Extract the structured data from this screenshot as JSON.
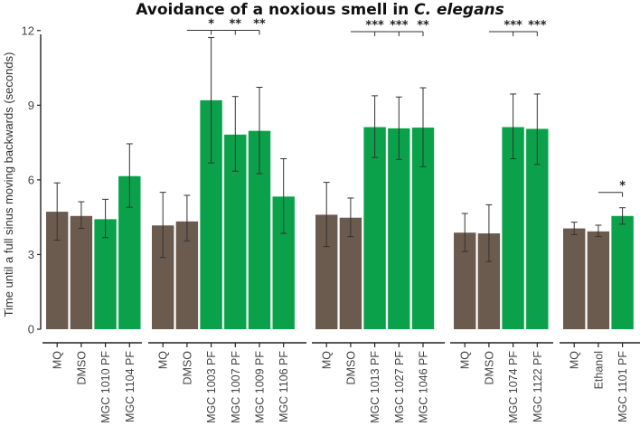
{
  "chart_data": {
    "type": "bar",
    "title_main": "Avoidance of a noxious smell in ",
    "title_italic": "C. elegans",
    "ylabel": "Time until a full sinus moving backwards (seconds)",
    "ylim": [
      0,
      12.5
    ],
    "yticks": [
      "0",
      "3",
      "6",
      "9",
      "12"
    ],
    "colors": {
      "control": "#6b5a4e",
      "treatment": "#0aa14a"
    },
    "groups": [
      {
        "name": "group-1",
        "bars": [
          {
            "label": "MQ",
            "value": 4.72,
            "lo": 3.58,
            "hi": 5.88,
            "kind": "control"
          },
          {
            "label": "DMSO",
            "value": 4.55,
            "lo": 4.05,
            "hi": 5.12,
            "kind": "control"
          },
          {
            "label": "MGC 1010 PF",
            "value": 4.42,
            "lo": 3.68,
            "hi": 5.22,
            "kind": "treatment"
          },
          {
            "label": "MGC 1104 PF",
            "value": 6.15,
            "lo": 4.9,
            "hi": 7.45,
            "kind": "treatment"
          }
        ],
        "sig": []
      },
      {
        "name": "group-2",
        "bars": [
          {
            "label": "MQ",
            "value": 4.17,
            "lo": 2.88,
            "hi": 5.5,
            "kind": "control"
          },
          {
            "label": "DMSO",
            "value": 4.33,
            "lo": 3.55,
            "hi": 5.38,
            "kind": "control"
          },
          {
            "label": "MGC 1003 PF",
            "value": 9.2,
            "lo": 6.68,
            "hi": 11.72,
            "kind": "treatment"
          },
          {
            "label": "MGC 1007 PF",
            "value": 7.82,
            "lo": 6.35,
            "hi": 9.35,
            "kind": "treatment"
          },
          {
            "label": "MGC 1009 PF",
            "value": 7.97,
            "lo": 6.25,
            "hi": 9.72,
            "kind": "treatment"
          },
          {
            "label": "MGC 1106 PF",
            "value": 5.33,
            "lo": 3.85,
            "hi": 6.85,
            "kind": "treatment"
          }
        ],
        "sig": [
          {
            "ref": 1,
            "marks": [
              {
                "bar": 2,
                "stars": "*"
              },
              {
                "bar": 3,
                "stars": "**"
              },
              {
                "bar": 4,
                "stars": "**"
              }
            ]
          }
        ]
      },
      {
        "name": "group-3",
        "bars": [
          {
            "label": "MQ",
            "value": 4.6,
            "lo": 3.32,
            "hi": 5.9,
            "kind": "control"
          },
          {
            "label": "DMSO",
            "value": 4.48,
            "lo": 3.72,
            "hi": 5.27,
            "kind": "control"
          },
          {
            "label": "MGC 1013 PF",
            "value": 8.12,
            "lo": 6.9,
            "hi": 9.38,
            "kind": "treatment"
          },
          {
            "label": "MGC 1027 PF",
            "value": 8.07,
            "lo": 6.82,
            "hi": 9.33,
            "kind": "treatment"
          },
          {
            "label": "MGC 1046 PF",
            "value": 8.1,
            "lo": 6.53,
            "hi": 9.7,
            "kind": "treatment"
          }
        ],
        "sig": [
          {
            "ref": 1,
            "marks": [
              {
                "bar": 2,
                "stars": "***"
              },
              {
                "bar": 3,
                "stars": "***"
              },
              {
                "bar": 4,
                "stars": "**"
              }
            ]
          }
        ]
      },
      {
        "name": "group-4",
        "bars": [
          {
            "label": "MQ",
            "value": 3.88,
            "lo": 3.12,
            "hi": 4.65,
            "kind": "control"
          },
          {
            "label": "DMSO",
            "value": 3.85,
            "lo": 2.72,
            "hi": 5.0,
            "kind": "control"
          },
          {
            "label": "MGC 1074 PF",
            "value": 8.12,
            "lo": 6.85,
            "hi": 9.45,
            "kind": "treatment"
          },
          {
            "label": "MGC 1122 PF",
            "value": 8.05,
            "lo": 6.62,
            "hi": 9.45,
            "kind": "treatment"
          }
        ],
        "sig": [
          {
            "ref": 1,
            "marks": [
              {
                "bar": 2,
                "stars": "***"
              },
              {
                "bar": 3,
                "stars": "***"
              }
            ]
          }
        ]
      },
      {
        "name": "group-5",
        "bars": [
          {
            "label": "MQ",
            "value": 4.05,
            "lo": 3.8,
            "hi": 4.3,
            "kind": "control"
          },
          {
            "label": "Ethanol",
            "value": 3.93,
            "lo": 3.72,
            "hi": 4.18,
            "kind": "control"
          },
          {
            "label": "MGC 1101 PF",
            "value": 4.55,
            "lo": 4.22,
            "hi": 4.88,
            "kind": "treatment"
          }
        ],
        "sig": [
          {
            "ref": 1,
            "marks": [
              {
                "bar": 2,
                "stars": "*"
              }
            ]
          }
        ]
      }
    ]
  }
}
